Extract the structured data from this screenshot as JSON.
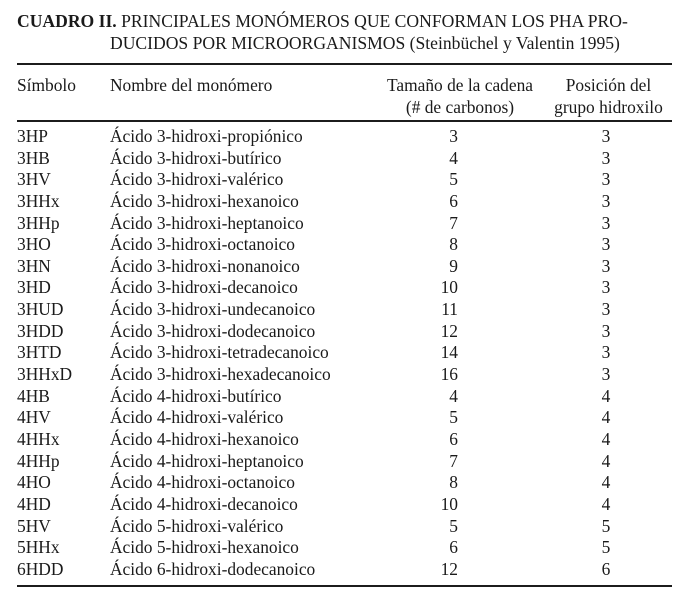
{
  "caption": {
    "label": "CUADRO II.",
    "line1": "PRINCIPALES MONÓMEROS QUE CONFORMAN LOS PHA PRO-",
    "line2": "DUCIDOS POR MICROORGANISMOS (Steinbüchel y Valentin 1995)"
  },
  "table": {
    "columns": [
      {
        "line1": "Símbolo",
        "line2": ""
      },
      {
        "line1": "Nombre del monómero",
        "line2": ""
      },
      {
        "line1": "Tamaño de la cadena",
        "line2": "(# de carbonos)"
      },
      {
        "line1": "Posición del",
        "line2": "grupo hidroxilo"
      }
    ],
    "rows": [
      {
        "symbol": "3HP",
        "name": "Ácido 3-hidroxi-propiónico",
        "chain_size": "3",
        "hydroxyl_position": "3"
      },
      {
        "symbol": "3HB",
        "name": "Ácido 3-hidroxi-butírico",
        "chain_size": "4",
        "hydroxyl_position": "3"
      },
      {
        "symbol": "3HV",
        "name": "Ácido 3-hidroxi-valérico",
        "chain_size": "5",
        "hydroxyl_position": "3"
      },
      {
        "symbol": "3HHx",
        "name": "Ácido 3-hidroxi-hexanoico",
        "chain_size": "6",
        "hydroxyl_position": "3"
      },
      {
        "symbol": "3HHp",
        "name": "Ácido 3-hidroxi-heptanoico",
        "chain_size": "7",
        "hydroxyl_position": "3"
      },
      {
        "symbol": "3HO",
        "name": "Ácido 3-hidroxi-octanoico",
        "chain_size": "8",
        "hydroxyl_position": "3"
      },
      {
        "symbol": "3HN",
        "name": "Ácido 3-hidroxi-nonanoico",
        "chain_size": "9",
        "hydroxyl_position": "3"
      },
      {
        "symbol": "3HD",
        "name": "Ácido 3-hidroxi-decanoico",
        "chain_size": "10",
        "hydroxyl_position": "3"
      },
      {
        "symbol": "3HUD",
        "name": "Ácido 3-hidroxi-undecanoico",
        "chain_size": "11",
        "hydroxyl_position": "3"
      },
      {
        "symbol": "3HDD",
        "name": "Ácido 3-hidroxi-dodecanoico",
        "chain_size": "12",
        "hydroxyl_position": "3"
      },
      {
        "symbol": "3HTD",
        "name": "Ácido 3-hidroxi-tetradecanoico",
        "chain_size": "14",
        "hydroxyl_position": "3"
      },
      {
        "symbol": "3HHxD",
        "name": "Ácido 3-hidroxi-hexadecanoico",
        "chain_size": "16",
        "hydroxyl_position": "3"
      },
      {
        "symbol": "4HB",
        "name": "Ácido 4-hidroxi-butírico",
        "chain_size": "4",
        "hydroxyl_position": "4"
      },
      {
        "symbol": "4HV",
        "name": "Ácido 4-hidroxi-valérico",
        "chain_size": "5",
        "hydroxyl_position": "4"
      },
      {
        "symbol": "4HHx",
        "name": "Ácido 4-hidroxi-hexanoico",
        "chain_size": "6",
        "hydroxyl_position": "4"
      },
      {
        "symbol": "4HHp",
        "name": "Ácido 4-hidroxi-heptanoico",
        "chain_size": "7",
        "hydroxyl_position": "4"
      },
      {
        "symbol": "4HO",
        "name": "Ácido 4-hidroxi-octanoico",
        "chain_size": "8",
        "hydroxyl_position": "4"
      },
      {
        "symbol": "4HD",
        "name": "Ácido 4-hidroxi-decanoico",
        "chain_size": "10",
        "hydroxyl_position": "4"
      },
      {
        "symbol": "5HV",
        "name": "Ácido 5-hidroxi-valérico",
        "chain_size": "5",
        "hydroxyl_position": "5"
      },
      {
        "symbol": "5HHx",
        "name": "Ácido 5-hidroxi-hexanoico",
        "chain_size": "6",
        "hydroxyl_position": "5"
      },
      {
        "symbol": "6HDD",
        "name": "Ácido 6-hidroxi-dodecanoico",
        "chain_size": "12",
        "hydroxyl_position": "6"
      }
    ]
  }
}
